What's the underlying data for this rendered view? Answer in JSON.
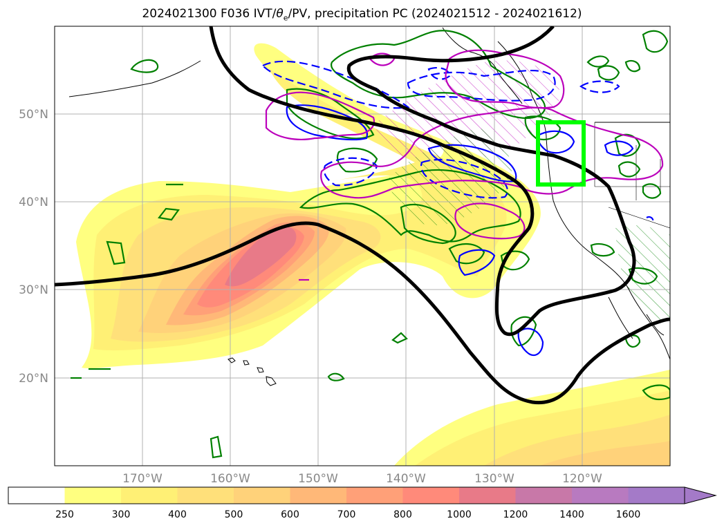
{
  "title": {
    "run": "2024021300 F036 IVT/",
    "theta": "θ",
    "theta_sub": "e",
    "rest": "/PV, precipitation PC (2024021512 - 2024021612)"
  },
  "map": {
    "lon_range": [
      -180,
      -110
    ],
    "lat_range": [
      10,
      60
    ],
    "lat_ticks": [
      {
        "value": 50,
        "label": "50°N"
      },
      {
        "value": 40,
        "label": "40°N"
      },
      {
        "value": 30,
        "label": "30°N"
      },
      {
        "value": 20,
        "label": "20°N"
      }
    ],
    "lon_ticks": [
      {
        "value": -170,
        "label": "170°W"
      },
      {
        "value": -160,
        "label": "160°W"
      },
      {
        "value": -150,
        "label": "150°W"
      },
      {
        "value": -140,
        "label": "140°W"
      },
      {
        "value": -130,
        "label": "130°W"
      },
      {
        "value": -120,
        "label": "120°W"
      }
    ],
    "grid": true,
    "highlight_box": {
      "lon": [
        -125,
        -120
      ],
      "lat": [
        42,
        49
      ],
      "color": "#00ff00"
    }
  },
  "colorbar": {
    "levels": [
      "250",
      "300",
      "400",
      "500",
      "600",
      "700",
      "800",
      "1000",
      "1200",
      "1400",
      "1600"
    ],
    "colors": [
      "#ffffff",
      "#ffff80",
      "#fff075",
      "#ffe07a",
      "#ffd27a",
      "#ffb878",
      "#ffa078",
      "#ff8a7a",
      "#e87a88",
      "#c878a8",
      "#b87ac0",
      "#a47ac8"
    ],
    "extend": "max"
  },
  "contour_colors": {
    "pv_black": "#000000",
    "green": "#008000",
    "blue": "#0000ff",
    "magenta": "#bb00bb",
    "box": "#00ff00"
  }
}
